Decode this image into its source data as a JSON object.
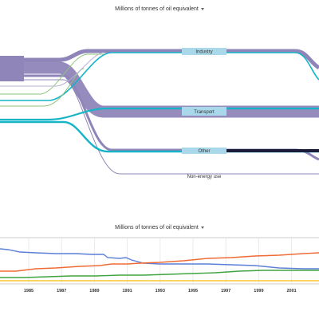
{
  "sankey": {
    "title": "Millions of tonnes of oil equivalent",
    "nodes": [
      "Industry",
      "Transport",
      "Other",
      "Non-energy use"
    ]
  },
  "line_chart": {
    "title": "Millions of tonnes of oil equivalent",
    "x_ticks": [
      "1985",
      "1987",
      "1989",
      "1991",
      "1993",
      "1995",
      "1997",
      "1999",
      "2001"
    ]
  },
  "colors": {
    "purple": "#8f85b8",
    "teal": "#17b4c8",
    "green": "#8cc47b",
    "blue_line": "#5b7fd8",
    "orange_line": "#f06a35",
    "green_line": "#3fa43f",
    "yellow_line": "#f5c728",
    "node_box": "#a9d8ea"
  }
}
